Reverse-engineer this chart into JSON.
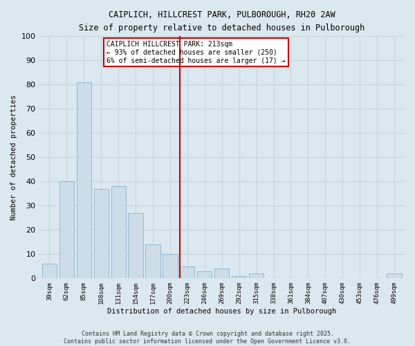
{
  "title1": "CAIPLICH, HILLCREST PARK, PULBOROUGH, RH20 2AW",
  "title2": "Size of property relative to detached houses in Pulborough",
  "xlabel": "Distribution of detached houses by size in Pulborough",
  "ylabel": "Number of detached properties",
  "categories": [
    "39sqm",
    "62sqm",
    "85sqm",
    "108sqm",
    "131sqm",
    "154sqm",
    "177sqm",
    "200sqm",
    "223sqm",
    "246sqm",
    "269sqm",
    "292sqm",
    "315sqm",
    "338sqm",
    "361sqm",
    "384sqm",
    "407sqm",
    "430sqm",
    "453sqm",
    "476sqm",
    "499sqm"
  ],
  "values": [
    6,
    40,
    81,
    37,
    38,
    27,
    14,
    10,
    5,
    3,
    4,
    1,
    2,
    0,
    0,
    0,
    0,
    0,
    0,
    0,
    2
  ],
  "bar_color": "#ccdce8",
  "bar_edge_color": "#90b8d0",
  "grid_color": "#c8d4dc",
  "bg_color": "#dce8f0",
  "vline_color": "#cc0000",
  "annotation_title": "CAIPLICH HILLCREST PARK: 213sqm",
  "annotation_line1": "← 93% of detached houses are smaller (250)",
  "annotation_line2": "6% of semi-detached houses are larger (17) →",
  "annotation_box_color": "#cc0000",
  "ylim": [
    0,
    100
  ],
  "yticks": [
    0,
    10,
    20,
    30,
    40,
    50,
    60,
    70,
    80,
    90,
    100
  ],
  "footnote1": "Contains HM Land Registry data © Crown copyright and database right 2025.",
  "footnote2": "Contains public sector information licensed under the Open Government Licence v3.0."
}
